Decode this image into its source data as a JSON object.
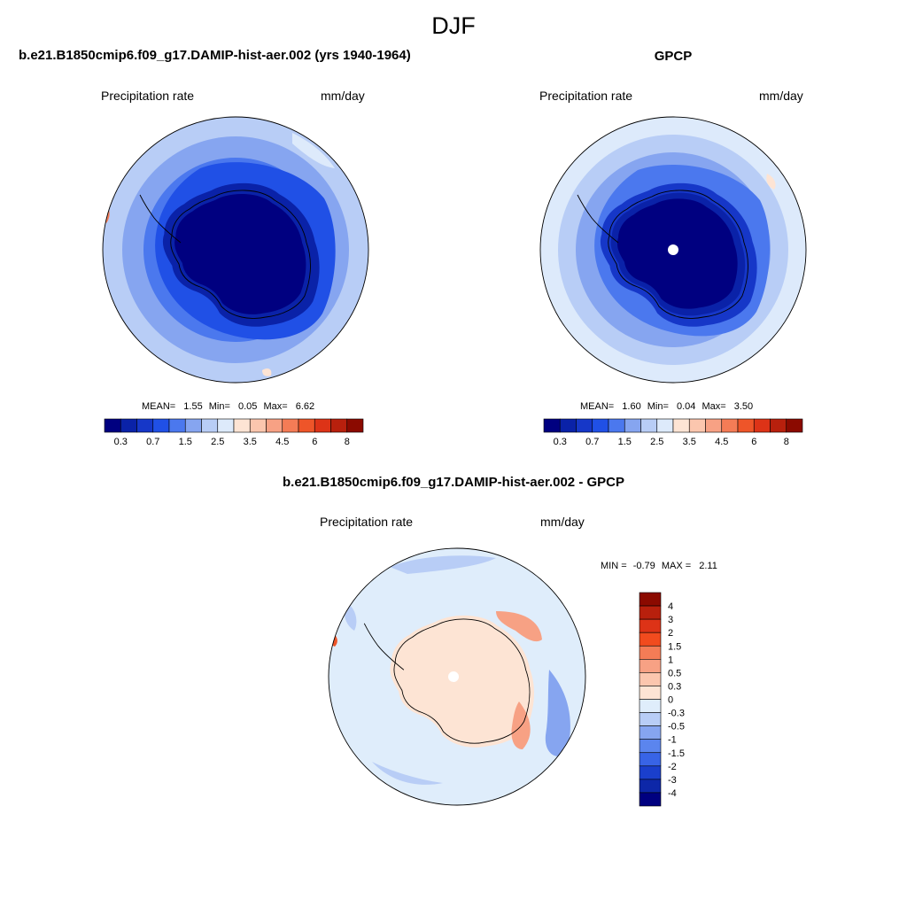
{
  "figure": {
    "title": "DJF"
  },
  "colors": {
    "outline": "#000000",
    "coast": "#000000",
    "missing": "#ffffff"
  },
  "panels": {
    "model": {
      "title": "b.e21.B1850cmip6.f09_g17.DAMIP-hist-aer.002 (yrs 1940-1964)",
      "left_label": "Precipitation rate",
      "right_label": "mm/day",
      "stats": {
        "mean_label": "MEAN=",
        "mean": "1.55",
        "min_label": "Min=",
        "min": "0.05",
        "max_label": "Max=",
        "max": "6.62"
      }
    },
    "obs": {
      "title": "GPCP",
      "left_label": "Precipitation rate",
      "right_label": "mm/day",
      "stats": {
        "mean_label": "MEAN=",
        "mean": "1.60",
        "min_label": "Min=",
        "min": "0.04",
        "max_label": "Max=",
        "max": "3.50"
      }
    },
    "diff": {
      "title": "b.e21.B1850cmip6.f09_g17.DAMIP-hist-aer.002 - GPCP",
      "left_label": "Precipitation rate",
      "right_label": "mm/day",
      "minmax": {
        "min_label": "MIN =",
        "min": "-0.79",
        "max_label": "MAX =",
        "max": "2.11"
      }
    }
  },
  "colorbars": {
    "precip": {
      "colors": [
        "#000080",
        "#0a22a8",
        "#1637c8",
        "#2050e6",
        "#4b78ee",
        "#86a5f0",
        "#b8cdf6",
        "#ddeafb",
        "#fde4d4",
        "#fbc6ae",
        "#f7a184",
        "#f47c56",
        "#ee5529",
        "#dd3317",
        "#b8200d",
        "#8b0a00"
      ],
      "tick_labels": [
        "0.3",
        "0.7",
        "1.5",
        "2.5",
        "3.5",
        "4.5",
        "6",
        "8"
      ]
    },
    "diff": {
      "colors": [
        "#8b0a00",
        "#b8200d",
        "#dd3317",
        "#f24b1e",
        "#f47c56",
        "#f7a184",
        "#fbc6ae",
        "#fde4d4",
        "#dfedfb",
        "#b8cdf6",
        "#86a5f0",
        "#5b85ee",
        "#3864e6",
        "#1a3fcc",
        "#0d27a8",
        "#000080"
      ],
      "tick_labels": [
        "4",
        "3",
        "2",
        "1.5",
        "1",
        "0.5",
        "0.3",
        "0",
        "-0.3",
        "-0.5",
        "-1",
        "-1.5",
        "-2",
        "-3",
        "-4"
      ]
    }
  }
}
